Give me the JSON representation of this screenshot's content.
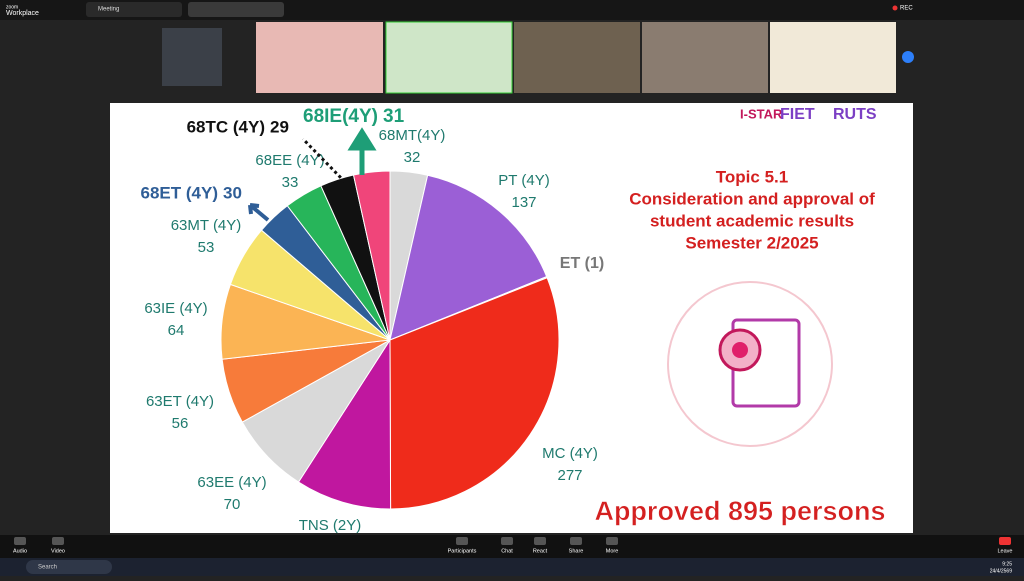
{
  "zoom": {
    "brand": [
      "zoom",
      "Workplace"
    ],
    "tab": "Meeting",
    "rec": "REC"
  },
  "slide": {
    "logos": [
      "I-STAR",
      "FIET",
      "RUTS"
    ],
    "topic": [
      "Topic 5.1",
      "Consideration and approval of",
      "student academic results",
      "Semester 2/2025"
    ],
    "approved": "Approved 895 persons"
  },
  "chart_data": {
    "type": "pie",
    "categories": [
      "68MT(4Y)",
      "PT (4Y)",
      "ET (1)",
      "MC (4Y)",
      "TNS (2Y)",
      "63EE (4Y)",
      "63ET (4Y)",
      "63IE (4Y)",
      "63MT (4Y)",
      "68ET (4Y)",
      "68EE (4Y)",
      "68TC (4Y)",
      "68IE(4Y)"
    ],
    "values": [
      32,
      137,
      1,
      277,
      82,
      70,
      56,
      64,
      53,
      30,
      33,
      29,
      31
    ],
    "value_labels": [
      "32",
      "137",
      null,
      "277",
      null,
      "70",
      "56",
      "64",
      "53",
      "30",
      "33",
      "29",
      "31"
    ],
    "colors": [
      "#d9d9d9",
      "#9b5fd6",
      "#e8e8e8",
      "#ef2b1b",
      "#c0179f",
      "#d9d9d9",
      "#f77b3a",
      "#fbb454",
      "#f6e36b",
      "#2f5e97",
      "#27b55a",
      "#111111",
      "#f0457a"
    ]
  },
  "toolbar": [
    "Audio",
    "Video",
    "Participants",
    "Chat",
    "React",
    "Share",
    "More",
    "Leave"
  ],
  "taskbar": {
    "search": "Search",
    "time": "9:25",
    "date": "24/4/2569"
  }
}
